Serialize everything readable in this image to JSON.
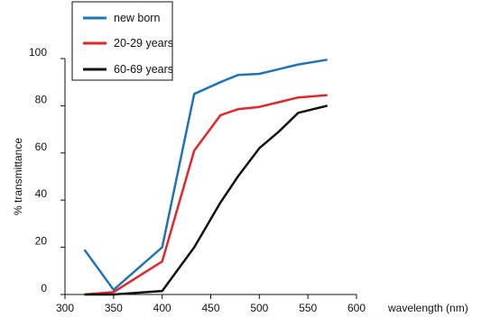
{
  "chart_data": {
    "type": "line",
    "xlabel": "wavelength (nm)",
    "ylabel": "% transmittance",
    "xlim": [
      300,
      600
    ],
    "ylim": [
      0,
      100
    ],
    "xticks": [
      300,
      350,
      400,
      450,
      500,
      550,
      600
    ],
    "yticks": [
      0,
      20,
      40,
      60,
      80,
      100
    ],
    "grid": false,
    "legend": "top-left",
    "series": [
      {
        "name": "new born",
        "color": "#1f73b7",
        "x": [
          320,
          350,
          400,
          433,
          460,
          478,
          500,
          520,
          540,
          570
        ],
        "y": [
          19,
          2,
          20,
          85,
          90,
          93,
          93.5,
          95.5,
          97.5,
          99.5
        ]
      },
      {
        "name": "20-29 years",
        "color": "#e3262b",
        "x": [
          320,
          350,
          400,
          433,
          460,
          478,
          500,
          520,
          540,
          570
        ],
        "y": [
          0,
          1,
          14,
          61,
          76,
          78.5,
          79.5,
          81.5,
          83.5,
          84.5
        ]
      },
      {
        "name": "60-69 years",
        "color": "#111111",
        "x": [
          320,
          350,
          400,
          433,
          460,
          478,
          500,
          520,
          540,
          570
        ],
        "y": [
          0,
          0,
          1.5,
          20,
          39,
          50,
          62,
          69,
          77,
          80
        ]
      }
    ]
  }
}
